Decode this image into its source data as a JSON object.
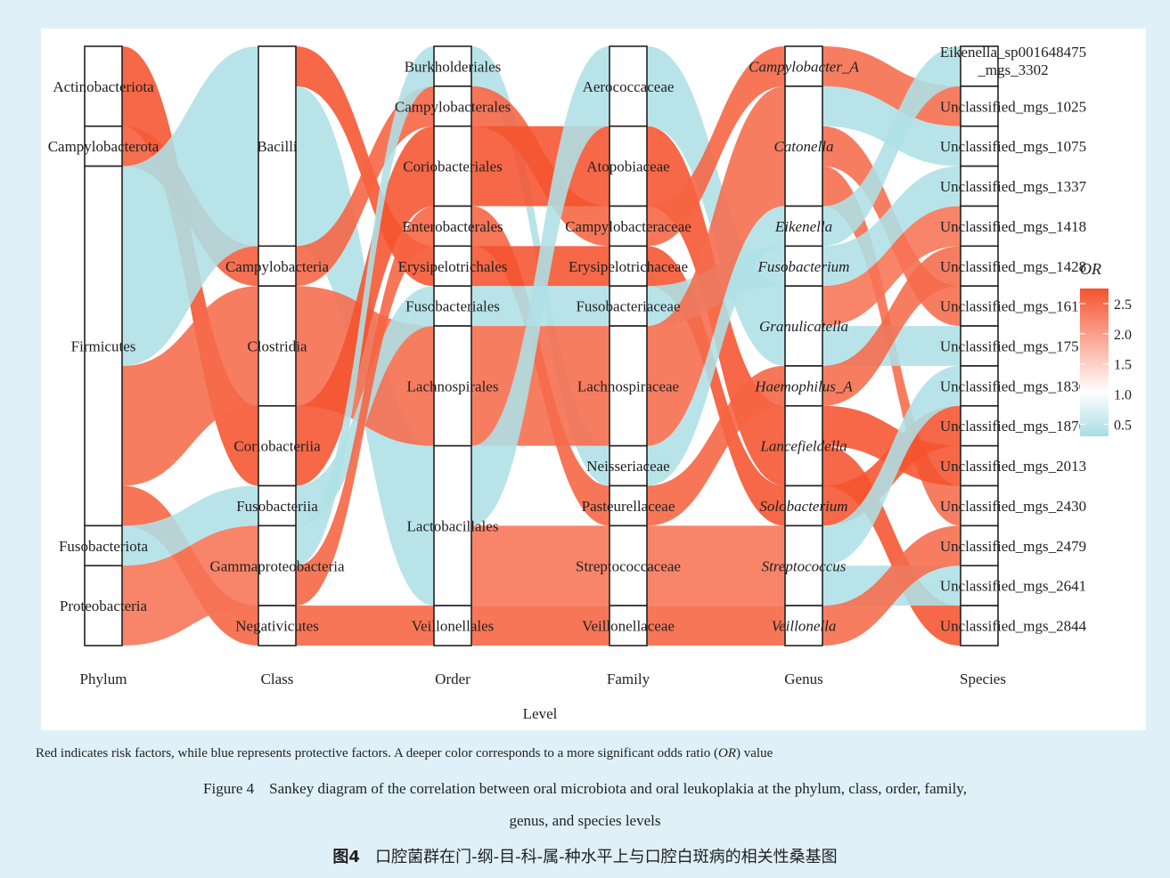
{
  "chart_data": {
    "type": "sankey",
    "xlabel": "Level",
    "axes": [
      "Phylum",
      "Class",
      "Order",
      "Family",
      "Genus",
      "Species"
    ],
    "legend": {
      "title": "OR",
      "ticks": [
        "2.5",
        "2.0",
        "1.5",
        "1.0",
        "0.5"
      ],
      "tick_values": [
        2.5,
        2.0,
        1.5,
        1.0,
        0.5
      ],
      "range": [
        0.3,
        2.75
      ],
      "color_low": "#a7dde4",
      "color_mid": "#ffffff",
      "color_high": "#f5532e",
      "placement": "right"
    },
    "columns": [
      {
        "level": "Phylum",
        "nodes": [
          {
            "name": "Actinobacteriota",
            "size": 2
          },
          {
            "name": "Campylobacterota",
            "size": 1
          },
          {
            "name": "Firmicutes",
            "size": 9
          },
          {
            "name": "Fusobacteriota",
            "size": 1
          },
          {
            "name": "Proteobacteria",
            "size": 2
          }
        ]
      },
      {
        "level": "Class",
        "nodes": [
          {
            "name": "Bacilli",
            "size": 5
          },
          {
            "name": "Campylobacteria",
            "size": 1
          },
          {
            "name": "Clostridia",
            "size": 3
          },
          {
            "name": "Coriobacteriia",
            "size": 2
          },
          {
            "name": "Fusobacteriia",
            "size": 1
          },
          {
            "name": "Gammaproteobacteria",
            "size": 2
          },
          {
            "name": "Negativicutes",
            "size": 1
          }
        ]
      },
      {
        "level": "Order",
        "nodes": [
          {
            "name": "Burkholderiales",
            "size": 1
          },
          {
            "name": "Campylobacterales",
            "size": 1
          },
          {
            "name": "Coriobacteriales",
            "size": 2
          },
          {
            "name": "Enterobacterales",
            "size": 1
          },
          {
            "name": "Erysipelotrichales",
            "size": 1
          },
          {
            "name": "Fusobacteriales",
            "size": 1
          },
          {
            "name": "Lachnospirales",
            "size": 3
          },
          {
            "name": "Lactobacillales",
            "size": 4
          },
          {
            "name": "Veillonellales",
            "size": 1
          }
        ]
      },
      {
        "level": "Family",
        "nodes": [
          {
            "name": "Aerococcaceae",
            "size": 2
          },
          {
            "name": "Atopobiaceae",
            "size": 2
          },
          {
            "name": "Campylobacteraceae",
            "size": 1
          },
          {
            "name": "Erysipelotrichaceae",
            "size": 1
          },
          {
            "name": "Fusobacteriaceae",
            "size": 1
          },
          {
            "name": "Lachnospiraceae",
            "size": 3
          },
          {
            "name": "Neisseriaceae",
            "size": 1
          },
          {
            "name": "Pasteurellaceae",
            "size": 1
          },
          {
            "name": "Streptococcaceae",
            "size": 2
          },
          {
            "name": "Veillonellaceae",
            "size": 1
          }
        ]
      },
      {
        "level": "Genus",
        "nodes": [
          {
            "name": "Campylobacter_A",
            "size": 1,
            "italic": true
          },
          {
            "name": "Catonella",
            "size": 3,
            "italic": true
          },
          {
            "name": "Eikenella",
            "size": 1,
            "italic": true
          },
          {
            "name": "Fusobacterium",
            "size": 1,
            "italic": true
          },
          {
            "name": "Granulicatella",
            "size": 2,
            "italic": true
          },
          {
            "name": "Haemophilus_A",
            "size": 1,
            "italic": true
          },
          {
            "name": "Lancefieldella",
            "size": 2,
            "italic": true
          },
          {
            "name": "Solobacterium",
            "size": 1,
            "italic": true
          },
          {
            "name": "Streptococcus",
            "size": 2,
            "italic": true
          },
          {
            "name": "Veillonella",
            "size": 1,
            "italic": true
          }
        ]
      },
      {
        "level": "Species",
        "nodes": [
          {
            "name": "Eikenella_sp001648475_mgs_3302",
            "size": 1
          },
          {
            "name": "Unclassified_mgs_1025",
            "size": 1
          },
          {
            "name": "Unclassified_mgs_1075",
            "size": 1
          },
          {
            "name": "Unclassified_mgs_1337",
            "size": 1
          },
          {
            "name": "Unclassified_mgs_1418",
            "size": 1
          },
          {
            "name": "Unclassified_mgs_1428",
            "size": 1
          },
          {
            "name": "Unclassified_mgs_1617",
            "size": 1
          },
          {
            "name": "Unclassified_mgs_1751",
            "size": 1
          },
          {
            "name": "Unclassified_mgs_1836",
            "size": 1
          },
          {
            "name": "Unclassified_mgs_1876",
            "size": 1
          },
          {
            "name": "Unclassified_mgs_2013",
            "size": 1
          },
          {
            "name": "Unclassified_mgs_2430",
            "size": 1
          },
          {
            "name": "Unclassified_mgs_2479",
            "size": 1
          },
          {
            "name": "Unclassified_mgs_2641",
            "size": 1
          },
          {
            "name": "Unclassified_mgs_2844",
            "size": 1
          }
        ]
      }
    ],
    "flows": [
      {
        "stage": 0,
        "from": "Actinobacteriota",
        "to": "Coriobacteriia",
        "size": 2,
        "or": 2.2
      },
      {
        "stage": 0,
        "from": "Campylobacterota",
        "to": "Campylobacteria",
        "size": 1,
        "or": 2.1
      },
      {
        "stage": 0,
        "from": "Firmicutes",
        "to": "Bacilli",
        "size": 5,
        "or": 0.6
      },
      {
        "stage": 0,
        "from": "Firmicutes",
        "to": "Clostridia",
        "size": 3,
        "or": 1.9
      },
      {
        "stage": 0,
        "from": "Firmicutes",
        "to": "Negativicutes",
        "size": 1,
        "or": 2.0
      },
      {
        "stage": 0,
        "from": "Fusobacteriota",
        "to": "Fusobacteriia",
        "size": 1,
        "or": 0.6
      },
      {
        "stage": 0,
        "from": "Proteobacteria",
        "to": "Gammaproteobacteria",
        "size": 2,
        "or": 1.8
      },
      {
        "stage": 1,
        "from": "Bacilli",
        "to": "Erysipelotrichales",
        "size": 1,
        "or": 2.4
      },
      {
        "stage": 1,
        "from": "Bacilli",
        "to": "Lactobacillales",
        "size": 4,
        "or": 0.6
      },
      {
        "stage": 1,
        "from": "Campylobacteria",
        "to": "Campylobacterales",
        "size": 1,
        "or": 2.0
      },
      {
        "stage": 1,
        "from": "Clostridia",
        "to": "Lachnospirales",
        "size": 3,
        "or": 1.9
      },
      {
        "stage": 1,
        "from": "Coriobacteriia",
        "to": "Coriobacteriales",
        "size": 2,
        "or": 2.4
      },
      {
        "stage": 1,
        "from": "Fusobacteriia",
        "to": "Fusobacteriales",
        "size": 1,
        "or": 0.6
      },
      {
        "stage": 1,
        "from": "Gammaproteobacteria",
        "to": "Burkholderiales",
        "size": 1,
        "or": 0.6
      },
      {
        "stage": 1,
        "from": "Gammaproteobacteria",
        "to": "Enterobacterales",
        "size": 1,
        "or": 2.0
      },
      {
        "stage": 1,
        "from": "Negativicutes",
        "to": "Veillonellales",
        "size": 1,
        "or": 2.0
      },
      {
        "stage": 2,
        "from": "Burkholderiales",
        "to": "Neisseriaceae",
        "size": 1,
        "or": 0.6
      },
      {
        "stage": 2,
        "from": "Campylobacterales",
        "to": "Campylobacteraceae",
        "size": 1,
        "or": 2.0
      },
      {
        "stage": 2,
        "from": "Coriobacteriales",
        "to": "Atopobiaceae",
        "size": 2,
        "or": 2.4
      },
      {
        "stage": 2,
        "from": "Enterobacterales",
        "to": "Pasteurellaceae",
        "size": 1,
        "or": 2.0
      },
      {
        "stage": 2,
        "from": "Erysipelotrichales",
        "to": "Erysipelotrichaceae",
        "size": 1,
        "or": 2.4
      },
      {
        "stage": 2,
        "from": "Fusobacteriales",
        "to": "Fusobacteriaceae",
        "size": 1,
        "or": 0.6
      },
      {
        "stage": 2,
        "from": "Lachnospirales",
        "to": "Lachnospiraceae",
        "size": 3,
        "or": 1.9
      },
      {
        "stage": 2,
        "from": "Lactobacillales",
        "to": "Aerococcaceae",
        "size": 2,
        "or": 0.6
      },
      {
        "stage": 2,
        "from": "Lactobacillales",
        "to": "Streptococcaceae",
        "size": 2,
        "or": 1.8
      },
      {
        "stage": 2,
        "from": "Veillonellales",
        "to": "Veillonellaceae",
        "size": 1,
        "or": 2.0
      },
      {
        "stage": 3,
        "from": "Aerococcaceae",
        "to": "Granulicatella",
        "size": 2,
        "or": 0.6
      },
      {
        "stage": 3,
        "from": "Atopobiaceae",
        "to": "Lancefieldella",
        "size": 2,
        "or": 2.5
      },
      {
        "stage": 3,
        "from": "Campylobacteraceae",
        "to": "Campylobacter_A",
        "size": 1,
        "or": 2.0
      },
      {
        "stage": 3,
        "from": "Erysipelotrichaceae",
        "to": "Solobacterium",
        "size": 1,
        "or": 2.5
      },
      {
        "stage": 3,
        "from": "Fusobacteriaceae",
        "to": "Fusobacterium",
        "size": 1,
        "or": 0.6
      },
      {
        "stage": 3,
        "from": "Lachnospiraceae",
        "to": "Catonella",
        "size": 3,
        "or": 1.9
      },
      {
        "stage": 3,
        "from": "Neisseriaceae",
        "to": "Eikenella",
        "size": 1,
        "or": 0.6
      },
      {
        "stage": 3,
        "from": "Pasteurellaceae",
        "to": "Haemophilus_A",
        "size": 1,
        "or": 2.0
      },
      {
        "stage": 3,
        "from": "Streptococcaceae",
        "to": "Streptococcus",
        "size": 2,
        "or": 1.8
      },
      {
        "stage": 3,
        "from": "Veillonellaceae",
        "to": "Veillonella",
        "size": 1,
        "or": 2.0
      },
      {
        "stage": 4,
        "from": "Campylobacter_A",
        "to": "Unclassified_mgs_1025",
        "size": 1,
        "or": 1.9
      },
      {
        "stage": 4,
        "from": "Catonella",
        "to": "Unclassified_mgs_1075",
        "size": 1,
        "or": 0.6
      },
      {
        "stage": 4,
        "from": "Catonella",
        "to": "Unclassified_mgs_1617",
        "size": 1,
        "or": 1.9
      },
      {
        "stage": 4,
        "from": "Catonella",
        "to": "Unclassified_mgs_2430",
        "size": 1,
        "or": 1.9
      },
      {
        "stage": 4,
        "from": "Eikenella",
        "to": "Eikenella_sp001648475_mgs_3302",
        "size": 1,
        "or": 0.6
      },
      {
        "stage": 4,
        "from": "Fusobacterium",
        "to": "Unclassified_mgs_1337",
        "size": 1,
        "or": 0.6
      },
      {
        "stage": 4,
        "from": "Granulicatella",
        "to": "Unclassified_mgs_1418",
        "size": 1,
        "or": 1.8
      },
      {
        "stage": 4,
        "from": "Granulicatella",
        "to": "Unclassified_mgs_1751",
        "size": 1,
        "or": 0.6
      },
      {
        "stage": 4,
        "from": "Haemophilus_A",
        "to": "Unclassified_mgs_1428",
        "size": 1,
        "or": 1.9
      },
      {
        "stage": 4,
        "from": "Lancefieldella",
        "to": "Unclassified_mgs_2013",
        "size": 1,
        "or": 2.2
      },
      {
        "stage": 4,
        "from": "Lancefieldella",
        "to": "Unclassified_mgs_2844",
        "size": 1,
        "or": 2.6
      },
      {
        "stage": 4,
        "from": "Solobacterium",
        "to": "Unclassified_mgs_1876",
        "size": 1,
        "or": 2.5
      },
      {
        "stage": 4,
        "from": "Streptococcus",
        "to": "Unclassified_mgs_1836",
        "size": 1,
        "or": 0.6
      },
      {
        "stage": 4,
        "from": "Streptococcus",
        "to": "Unclassified_mgs_2641",
        "size": 1,
        "or": 0.6
      },
      {
        "stage": 4,
        "from": "Veillonella",
        "to": "Unclassified_mgs_2479",
        "size": 1,
        "or": 1.9
      }
    ]
  },
  "captions": {
    "note_prefix": "Red indicates risk factors, while blue represents protective factors. A deeper color corresponds to a more significant odds ratio (",
    "note_or": "OR",
    "note_suffix": ") value",
    "figure_en_line1": "Figure 4    Sankey diagram of the correlation between oral microbiota and oral leukoplakia at the phylum, class, order, family,",
    "figure_en_line2": "genus, and species levels",
    "figure_zh_label": "图4",
    "figure_zh_text": "口腔菌群在门-纲-目-科-属-种水平上与口腔白斑病的相关性桑基图"
  }
}
